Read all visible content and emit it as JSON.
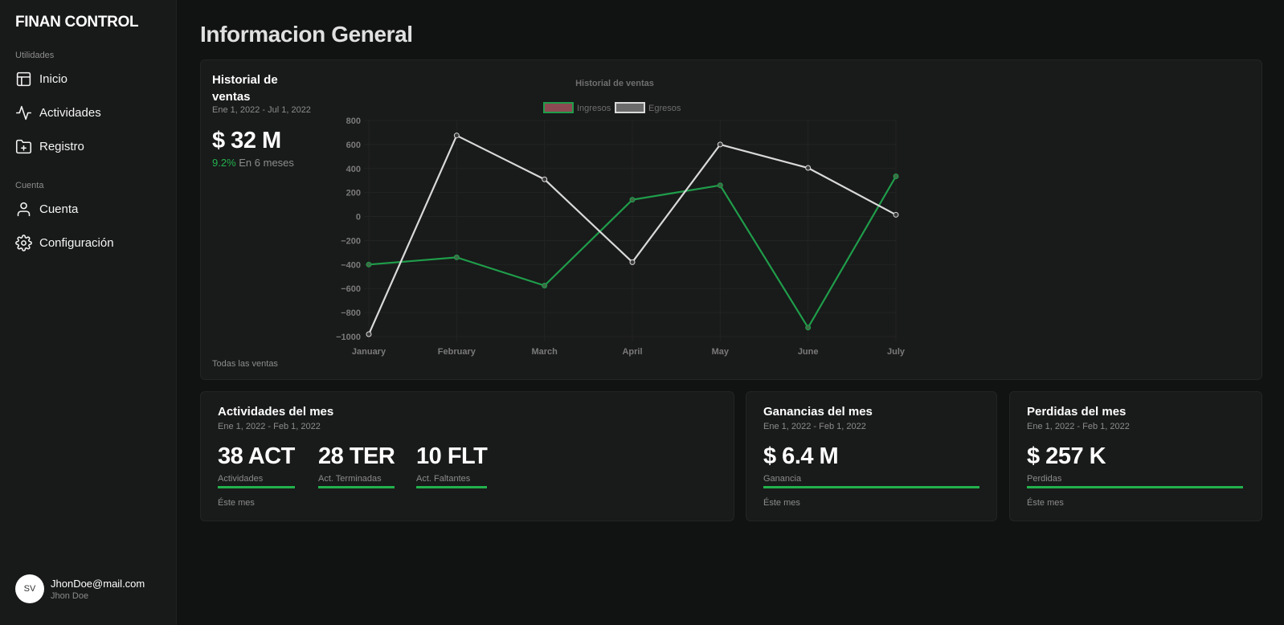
{
  "sidebar": {
    "brand": "FINAN CONTROL",
    "section_utilities": "Utilidades",
    "section_account": "Cuenta",
    "items": [
      {
        "label": "Inicio",
        "icon": "layout-icon"
      },
      {
        "label": "Actividades",
        "icon": "activity-icon"
      },
      {
        "label": "Registro",
        "icon": "folder-plus-icon"
      },
      {
        "label": "Cuenta",
        "icon": "user-icon"
      },
      {
        "label": "Configuración",
        "icon": "gear-icon"
      }
    ],
    "user": {
      "initials": "SV",
      "email": "JhonDoe@mail.com",
      "name": "Jhon Doe"
    }
  },
  "main": {
    "title": "Informacion General",
    "sales_card": {
      "title": "Historial de ventas",
      "range": "Ene 1, 2022 - Jul 1, 2022",
      "amount": "$ 32 M",
      "growth_pct": "9.2%",
      "growth_text": "En 6 meses",
      "footer": "Todas las ventas"
    },
    "activities_card": {
      "title": "Actividades del mes",
      "range": "Ene 1, 2022 - Feb 1, 2022",
      "metrics": [
        {
          "value": "38 ACT",
          "label": "Actividades"
        },
        {
          "value": "28 TER",
          "label": "Act. Terminadas"
        },
        {
          "value": "10 FLT",
          "label": "Act. Faltantes"
        }
      ],
      "footer": "Éste mes"
    },
    "earnings_card": {
      "title": "Ganancias del mes",
      "range": "Ene 1, 2022 - Feb 1, 2022",
      "value": "$ 6.4 M",
      "label": "Ganancia",
      "footer": "Éste mes"
    },
    "losses_card": {
      "title": "Perdidas del mes",
      "range": "Ene 1, 2022 - Feb 1, 2022",
      "value": "$ 257 K",
      "label": "Perdidas",
      "footer": "Éste mes"
    }
  },
  "colors": {
    "accent": "#22b14c",
    "ingresos": "#1f9d4a",
    "egresos": "#d9d9d9"
  },
  "chart_data": {
    "type": "line",
    "title": "Historial de ventas",
    "categories": [
      "January",
      "February",
      "March",
      "April",
      "May",
      "June",
      "July"
    ],
    "series": [
      {
        "name": "Ingresos",
        "values": [
          -400,
          -340,
          -575,
          140,
          260,
          -925,
          335
        ]
      },
      {
        "name": "Egresos",
        "values": [
          -980,
          675,
          310,
          -380,
          600,
          405,
          15
        ]
      }
    ],
    "ylim": [
      -1000,
      800
    ],
    "yticks": [
      800,
      600,
      400,
      200,
      0,
      -200,
      -400,
      -600,
      -800,
      -1000
    ],
    "xlabel": "",
    "ylabel": "",
    "legend": "top"
  }
}
